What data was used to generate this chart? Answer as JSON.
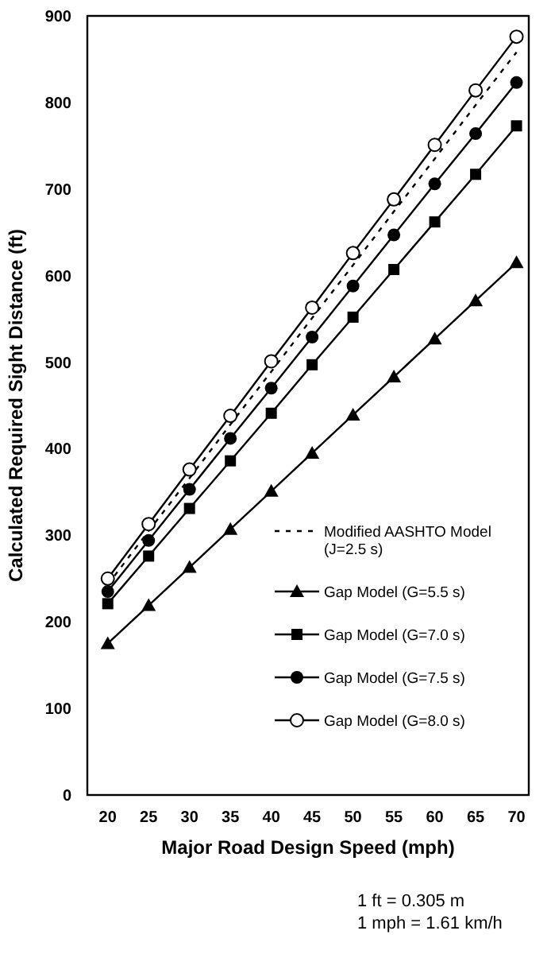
{
  "chart_data": {
    "type": "line",
    "xlabel": "Major Road Design Speed (mph)",
    "ylabel": "Calculated Required Sight Distance (ft)",
    "x": [
      20,
      25,
      30,
      35,
      40,
      45,
      50,
      55,
      60,
      65,
      70
    ],
    "xlim": [
      17.5,
      71.5
    ],
    "xticks": [
      20,
      25,
      30,
      35,
      40,
      45,
      50,
      55,
      60,
      65,
      70
    ],
    "ylim": [
      0,
      900
    ],
    "yticks": [
      0,
      100,
      200,
      300,
      400,
      500,
      600,
      700,
      800,
      900
    ],
    "grid": false,
    "legend": "bottom right",
    "series": [
      {
        "name": "Modified AASHTO Model (J=2.5 s)",
        "color": "#000000",
        "marker": "none",
        "line_style": "dotted",
        "values": [
          243,
          305,
          366,
          428,
          489,
          551,
          612,
          674,
          735,
          797,
          858
        ]
      },
      {
        "name": "Gap Model (G=5.5 s)",
        "color": "#000000",
        "marker": "triangle",
        "line_style": "solid",
        "values": [
          175,
          219,
          263,
          307,
          351,
          395,
          439,
          483,
          527,
          571,
          615
        ]
      },
      {
        "name": "Gap Model (G=7.0 s)",
        "color": "#000000",
        "marker": "square",
        "line_style": "solid",
        "values": [
          221,
          276,
          331,
          386,
          441,
          497,
          552,
          607,
          662,
          717,
          773
        ]
      },
      {
        "name": "Gap Model (G=7.5 s)",
        "color": "#000000",
        "marker": "circle",
        "line_style": "solid",
        "values": [
          235,
          294,
          353,
          412,
          470,
          529,
          588,
          647,
          706,
          764,
          823
        ]
      },
      {
        "name": "Gap Model (G=8.0 s)",
        "color": "#000000",
        "marker": "open-circle",
        "line_style": "solid",
        "values": [
          250,
          313,
          376,
          438,
          501,
          563,
          626,
          688,
          751,
          814,
          876
        ]
      }
    ],
    "annotations": [
      "1 ft = 0.305 m",
      "1 mph = 1.61 km/h"
    ]
  }
}
